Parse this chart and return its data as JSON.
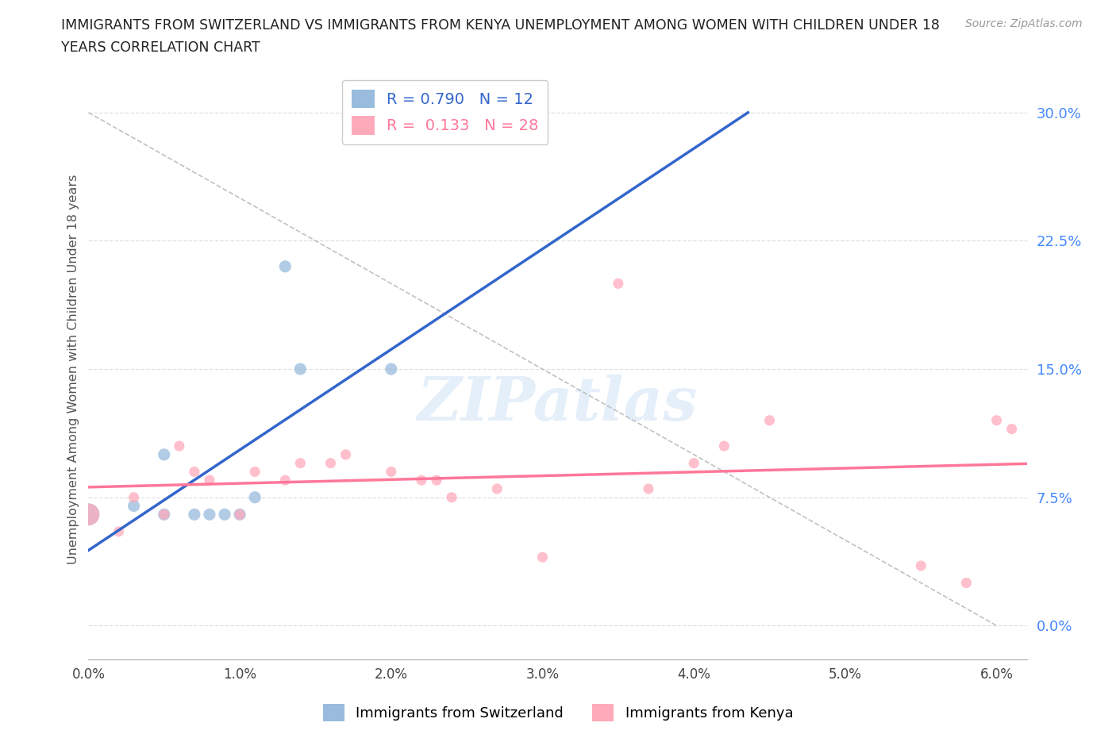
{
  "title_line1": "IMMIGRANTS FROM SWITZERLAND VS IMMIGRANTS FROM KENYA UNEMPLOYMENT AMONG WOMEN WITH CHILDREN UNDER 18",
  "title_line2": "YEARS CORRELATION CHART",
  "source": "Source: ZipAtlas.com",
  "ylabel": "Unemployment Among Women with Children Under 18 years",
  "watermark": "ZIPatlas",
  "switzerland_x": [
    0.0,
    0.3,
    0.5,
    0.5,
    0.7,
    0.8,
    0.9,
    1.0,
    1.1,
    1.3,
    1.4,
    2.0
  ],
  "switzerland_y": [
    6.5,
    7.0,
    6.5,
    10.0,
    6.5,
    6.5,
    6.5,
    6.5,
    7.5,
    21.0,
    15.0,
    15.0
  ],
  "kenya_x": [
    0.0,
    0.2,
    0.3,
    0.5,
    0.6,
    0.7,
    0.8,
    1.0,
    1.1,
    1.3,
    1.4,
    1.6,
    1.7,
    2.0,
    2.2,
    2.3,
    2.4,
    2.7,
    3.0,
    3.5,
    3.7,
    4.0,
    4.2,
    4.5,
    5.5,
    5.8,
    6.0,
    6.1
  ],
  "kenya_y": [
    6.5,
    5.5,
    7.5,
    6.5,
    10.5,
    9.0,
    8.5,
    6.5,
    9.0,
    8.5,
    9.5,
    9.5,
    10.0,
    9.0,
    8.5,
    8.5,
    7.5,
    8.0,
    4.0,
    20.0,
    8.0,
    9.5,
    10.5,
    12.0,
    3.5,
    2.5,
    12.0,
    11.5
  ],
  "swiss_R": 0.79,
  "swiss_N": 12,
  "kenya_R": 0.133,
  "kenya_N": 28,
  "swiss_color": "#99bbdd",
  "kenya_color": "#ffaabb",
  "swiss_line_color": "#3366cc",
  "kenya_line_color": "#ff7799",
  "diagonal_color": "#bbbbbb",
  "xlim_pct": [
    0.0,
    6.2
  ],
  "ylim_pct": [
    -2.0,
    32.0
  ],
  "xticks_pct": [
    0.0,
    1.0,
    2.0,
    3.0,
    4.0,
    5.0,
    6.0
  ],
  "yticks_pct": [
    0.0,
    7.5,
    15.0,
    22.5,
    30.0
  ],
  "background_color": "#ffffff",
  "grid_color": "#e0e0e0"
}
